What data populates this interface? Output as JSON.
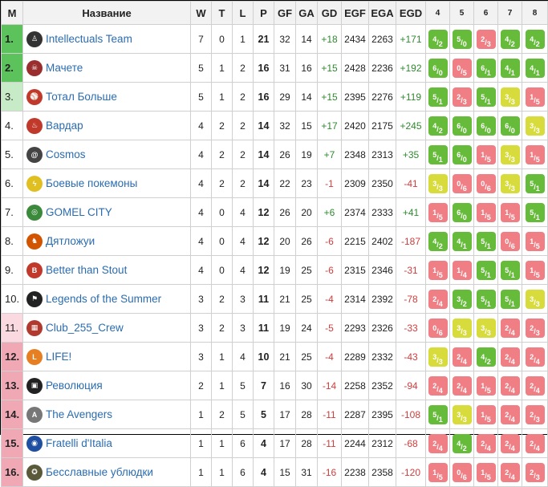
{
  "headers": {
    "m": "M",
    "name": "Название",
    "w": "W",
    "t": "T",
    "l": "L",
    "p": "P",
    "gf": "GF",
    "ga": "GA",
    "gd": "GD",
    "egf": "EGF",
    "ega": "EGA",
    "egd": "EGD",
    "r4": "4",
    "r5": "5",
    "r6": "6",
    "r7": "7",
    "r8": "8"
  },
  "colors": {
    "pos_green": "#5cc35c",
    "pos_lightgreen": "#c6ebc6",
    "pos_red": "#f0a8b5",
    "pos_lightred": "#fbd9e0",
    "win": "#66bb3a",
    "draw": "#d7db3c",
    "loss": "#f07e85"
  },
  "rows": [
    {
      "pos": "1.",
      "pos_style": "green",
      "logo": "tie-man-icon",
      "logo_color": "#333333",
      "name": "Intellectuals Team",
      "w": "7",
      "t": "0",
      "l": "1",
      "p": "21",
      "gf": "32",
      "ga": "14",
      "gd": "+18",
      "egf": "2434",
      "ega": "2263",
      "egd": "+171",
      "results": [
        [
          "4",
          "2",
          "win"
        ],
        [
          "5",
          "0",
          "win"
        ],
        [
          "2",
          "3",
          "loss"
        ],
        [
          "4",
          "2",
          "win"
        ],
        [
          "4",
          "2",
          "win"
        ]
      ]
    },
    {
      "pos": "2.",
      "pos_style": "green",
      "logo": "skull-icon",
      "logo_color": "#9a2e2e",
      "name": "Мачете",
      "w": "5",
      "t": "1",
      "l": "2",
      "p": "16",
      "gf": "31",
      "ga": "16",
      "gd": "+15",
      "egf": "2428",
      "ega": "2236",
      "egd": "+192",
      "results": [
        [
          "6",
          "0",
          "win"
        ],
        [
          "0",
          "5",
          "loss"
        ],
        [
          "6",
          "1",
          "win"
        ],
        [
          "4",
          "1",
          "win"
        ],
        [
          "4",
          "1",
          "win"
        ]
      ]
    },
    {
      "pos": "3.",
      "pos_style": "lightgreen",
      "logo": "player-icon",
      "logo_color": "#c0392b",
      "name": "Тотал Больше",
      "w": "5",
      "t": "1",
      "l": "2",
      "p": "16",
      "gf": "29",
      "ga": "14",
      "gd": "+15",
      "egf": "2395",
      "ega": "2276",
      "egd": "+119",
      "results": [
        [
          "5",
          "1",
          "win"
        ],
        [
          "2",
          "3",
          "loss"
        ],
        [
          "5",
          "1",
          "win"
        ],
        [
          "3",
          "3",
          "draw"
        ],
        [
          "1",
          "5",
          "loss"
        ]
      ]
    },
    {
      "pos": "4.",
      "pos_style": "white",
      "logo": "flame-icon",
      "logo_color": "#c0392b",
      "name": "Вардар",
      "w": "4",
      "t": "2",
      "l": "2",
      "p": "14",
      "gf": "32",
      "ga": "15",
      "gd": "+17",
      "egf": "2420",
      "ega": "2175",
      "egd": "+245",
      "results": [
        [
          "4",
          "2",
          "win"
        ],
        [
          "6",
          "0",
          "win"
        ],
        [
          "6",
          "0",
          "win"
        ],
        [
          "6",
          "0",
          "win"
        ],
        [
          "3",
          "3",
          "draw"
        ]
      ]
    },
    {
      "pos": "5.",
      "pos_style": "white",
      "logo": "spiral-icon",
      "logo_color": "#444444",
      "name": "Cosmos",
      "w": "4",
      "t": "2",
      "l": "2",
      "p": "14",
      "gf": "26",
      "ga": "19",
      "gd": "+7",
      "egf": "2348",
      "ega": "2313",
      "egd": "+35",
      "results": [
        [
          "5",
          "1",
          "win"
        ],
        [
          "6",
          "0",
          "win"
        ],
        [
          "1",
          "5",
          "loss"
        ],
        [
          "3",
          "3",
          "draw"
        ],
        [
          "1",
          "5",
          "loss"
        ]
      ]
    },
    {
      "pos": "6.",
      "pos_style": "white",
      "logo": "pikachu-icon",
      "logo_color": "#e0c020",
      "name": "Боевые покемоны",
      "w": "4",
      "t": "2",
      "l": "2",
      "p": "14",
      "gf": "22",
      "ga": "23",
      "gd": "-1",
      "egf": "2309",
      "ega": "2350",
      "egd": "-41",
      "results": [
        [
          "3",
          "3",
          "draw"
        ],
        [
          "0",
          "6",
          "loss"
        ],
        [
          "0",
          "6",
          "loss"
        ],
        [
          "3",
          "3",
          "draw"
        ],
        [
          "5",
          "1",
          "win"
        ]
      ]
    },
    {
      "pos": "7.",
      "pos_style": "white",
      "logo": "city-crest-icon",
      "logo_color": "#3b8a3b",
      "name": "GOMEL CITY",
      "w": "4",
      "t": "0",
      "l": "4",
      "p": "12",
      "gf": "26",
      "ga": "20",
      "gd": "+6",
      "egf": "2374",
      "ega": "2333",
      "egd": "+41",
      "results": [
        [
          "1",
          "5",
          "loss"
        ],
        [
          "6",
          "0",
          "win"
        ],
        [
          "1",
          "5",
          "loss"
        ],
        [
          "1",
          "5",
          "loss"
        ],
        [
          "5",
          "1",
          "win"
        ]
      ]
    },
    {
      "pos": "8.",
      "pos_style": "white",
      "logo": "woodpecker-icon",
      "logo_color": "#d35400",
      "name": "Дятложуи",
      "w": "4",
      "t": "0",
      "l": "4",
      "p": "12",
      "gf": "20",
      "ga": "26",
      "gd": "-6",
      "egf": "2215",
      "ega": "2402",
      "egd": "-187",
      "results": [
        [
          "4",
          "2",
          "win"
        ],
        [
          "4",
          "1",
          "win"
        ],
        [
          "5",
          "1",
          "win"
        ],
        [
          "0",
          "6",
          "loss"
        ],
        [
          "1",
          "5",
          "loss"
        ]
      ]
    },
    {
      "pos": "9.",
      "pos_style": "white",
      "logo": "bts-icon",
      "logo_color": "#c0392b",
      "name": "Better than Stout",
      "w": "4",
      "t": "0",
      "l": "4",
      "p": "12",
      "gf": "19",
      "ga": "25",
      "gd": "-6",
      "egf": "2315",
      "ega": "2346",
      "egd": "-31",
      "results": [
        [
          "1",
          "5",
          "loss"
        ],
        [
          "1",
          "4",
          "loss"
        ],
        [
          "5",
          "1",
          "win"
        ],
        [
          "5",
          "1",
          "win"
        ],
        [
          "1",
          "5",
          "loss"
        ]
      ]
    },
    {
      "pos": "10.",
      "pos_style": "white",
      "logo": "flag-icon",
      "logo_color": "#222222",
      "name": "Legends of the Summer",
      "w": "3",
      "t": "2",
      "l": "3",
      "p": "11",
      "gf": "21",
      "ga": "25",
      "gd": "-4",
      "egf": "2314",
      "ega": "2392",
      "egd": "-78",
      "results": [
        [
          "2",
          "4",
          "loss"
        ],
        [
          "3",
          "2",
          "win"
        ],
        [
          "5",
          "1",
          "win"
        ],
        [
          "5",
          "1",
          "win"
        ],
        [
          "3",
          "3",
          "draw"
        ]
      ]
    },
    {
      "pos": "11.",
      "pos_style": "lightred",
      "logo": "crew-icon",
      "logo_color": "#b03a2e",
      "name": "Club_255_Crew",
      "w": "3",
      "t": "2",
      "l": "3",
      "p": "11",
      "gf": "19",
      "ga": "24",
      "gd": "-5",
      "egf": "2293",
      "ega": "2326",
      "egd": "-33",
      "results": [
        [
          "0",
          "6",
          "loss"
        ],
        [
          "3",
          "3",
          "draw"
        ],
        [
          "3",
          "3",
          "draw"
        ],
        [
          "2",
          "4",
          "loss"
        ],
        [
          "2",
          "3",
          "loss"
        ]
      ]
    },
    {
      "pos": "12.",
      "pos_style": "red",
      "logo": "life-icon",
      "logo_color": "#e67e22",
      "name": "LIFE!",
      "w": "3",
      "t": "1",
      "l": "4",
      "p": "10",
      "gf": "21",
      "ga": "25",
      "gd": "-4",
      "egf": "2289",
      "ega": "2332",
      "egd": "-43",
      "results": [
        [
          "3",
          "3",
          "draw"
        ],
        [
          "2",
          "4",
          "loss"
        ],
        [
          "4",
          "2",
          "win"
        ],
        [
          "2",
          "4",
          "loss"
        ],
        [
          "2",
          "4",
          "loss"
        ]
      ]
    },
    {
      "pos": "13.",
      "pos_style": "red",
      "logo": "revolution-icon",
      "logo_color": "#222222",
      "name": "Революция",
      "w": "2",
      "t": "1",
      "l": "5",
      "p": "7",
      "gf": "16",
      "ga": "30",
      "gd": "-14",
      "egf": "2258",
      "ega": "2352",
      "egd": "-94",
      "results": [
        [
          "2",
          "4",
          "loss"
        ],
        [
          "2",
          "4",
          "loss"
        ],
        [
          "1",
          "5",
          "loss"
        ],
        [
          "2",
          "4",
          "loss"
        ],
        [
          "2",
          "4",
          "loss"
        ]
      ]
    },
    {
      "pos": "14.",
      "pos_style": "red",
      "logo": "avengers-icon",
      "logo_color": "#777777",
      "name": "The Avengers",
      "w": "1",
      "t": "2",
      "l": "5",
      "p": "5",
      "gf": "17",
      "ga": "28",
      "gd": "-11",
      "egf": "2287",
      "ega": "2395",
      "egd": "-108",
      "results": [
        [
          "5",
          "1",
          "win"
        ],
        [
          "3",
          "3",
          "draw"
        ],
        [
          "1",
          "5",
          "loss"
        ],
        [
          "2",
          "4",
          "loss"
        ],
        [
          "2",
          "3",
          "loss"
        ]
      ]
    },
    {
      "pos": "15.",
      "pos_style": "red",
      "logo": "italy-crest-icon",
      "logo_color": "#1f4fa0",
      "name": "Fratelli d'Italia",
      "w": "1",
      "t": "1",
      "l": "6",
      "p": "4",
      "gf": "17",
      "ga": "28",
      "gd": "-11",
      "egf": "2244",
      "ega": "2312",
      "egd": "-68",
      "results": [
        [
          "2",
          "4",
          "loss"
        ],
        [
          "4",
          "2",
          "win"
        ],
        [
          "2",
          "4",
          "loss"
        ],
        [
          "2",
          "4",
          "loss"
        ],
        [
          "2",
          "4",
          "loss"
        ]
      ]
    },
    {
      "pos": "16.",
      "pos_style": "red",
      "logo": "emblem-icon",
      "logo_color": "#5a5a3a",
      "name": "Бесславные ублюдки",
      "w": "1",
      "t": "1",
      "l": "6",
      "p": "4",
      "gf": "15",
      "ga": "31",
      "gd": "-16",
      "egf": "2238",
      "ega": "2358",
      "egd": "-120",
      "results": [
        [
          "1",
          "5",
          "loss"
        ],
        [
          "0",
          "6",
          "loss"
        ],
        [
          "1",
          "5",
          "loss"
        ],
        [
          "2",
          "4",
          "loss"
        ],
        [
          "2",
          "3",
          "loss"
        ]
      ]
    }
  ]
}
